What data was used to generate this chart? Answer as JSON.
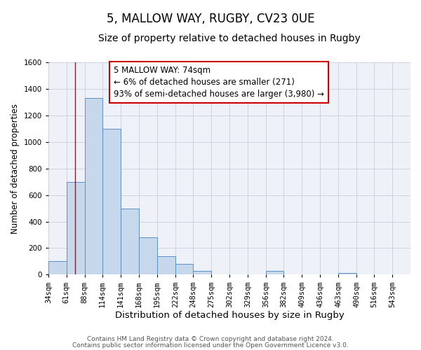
{
  "title": "5, MALLOW WAY, RUGBY, CV23 0UE",
  "subtitle": "Size of property relative to detached houses in Rugby",
  "xlabel": "Distribution of detached houses by size in Rugby",
  "ylabel": "Number of detached properties",
  "bar_edges": [
    34,
    61,
    88,
    114,
    141,
    168,
    195,
    222,
    248,
    275,
    302,
    329,
    356,
    382,
    409,
    436,
    463,
    490,
    516,
    543,
    570
  ],
  "bar_heights": [
    100,
    700,
    1330,
    1100,
    500,
    280,
    140,
    80,
    30,
    0,
    0,
    0,
    30,
    0,
    0,
    0,
    15,
    0,
    0,
    0,
    0
  ],
  "bar_color": "#c8d8ec",
  "bar_edge_color": "#5b8fc4",
  "property_line_x": 74,
  "property_line_color": "#cc0000",
  "annotation_line1": "5 MALLOW WAY: 74sqm",
  "annotation_line2": "← 6% of detached houses are smaller (271)",
  "annotation_line3": "93% of semi-detached houses are larger (3,980) →",
  "ylim": [
    0,
    1600
  ],
  "yticks": [
    0,
    200,
    400,
    600,
    800,
    1000,
    1200,
    1400,
    1600
  ],
  "background_color": "#ffffff",
  "plot_bg_color": "#eef2f8",
  "grid_color": "#c8cdd8",
  "title_fontsize": 12,
  "subtitle_fontsize": 10,
  "xlabel_fontsize": 9.5,
  "ylabel_fontsize": 8.5,
  "tick_fontsize": 7.5,
  "annotation_fontsize": 8.5,
  "footer_fontsize": 6.5,
  "footer_line1": "Contains HM Land Registry data © Crown copyright and database right 2024.",
  "footer_line2": "Contains public sector information licensed under the Open Government Licence v3.0."
}
